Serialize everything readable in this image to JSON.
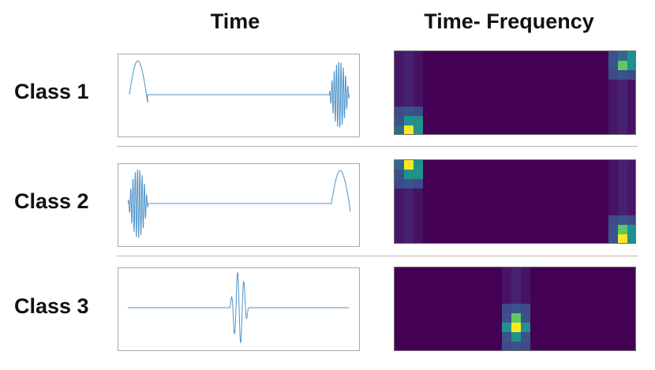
{
  "headers": {
    "time": "Time",
    "time_frequency": "Time- Frequency"
  },
  "rows": [
    {
      "label": "Class 1",
      "signal": {
        "chirp_position": "start",
        "burst_position": "end"
      },
      "spectrogram": {
        "bright_regions": [
          "bottom-left",
          "top-right"
        ]
      }
    },
    {
      "label": "Class 2",
      "signal": {
        "burst_position": "start",
        "chirp_position": "end"
      },
      "spectrogram": {
        "bright_regions": [
          "top-left",
          "bottom-right"
        ]
      }
    },
    {
      "label": "Class 3",
      "signal": {
        "burst_position": "center"
      },
      "spectrogram": {
        "bright_regions": [
          "center-bottom"
        ]
      }
    }
  ],
  "colors": {
    "signal_line": "#4f93c8",
    "spectrogram_background": "#440154",
    "viridis_low": "#3b528b",
    "viridis_mid": "#21918c",
    "viridis_high": "#5ec962",
    "viridis_peak": "#fde725"
  }
}
